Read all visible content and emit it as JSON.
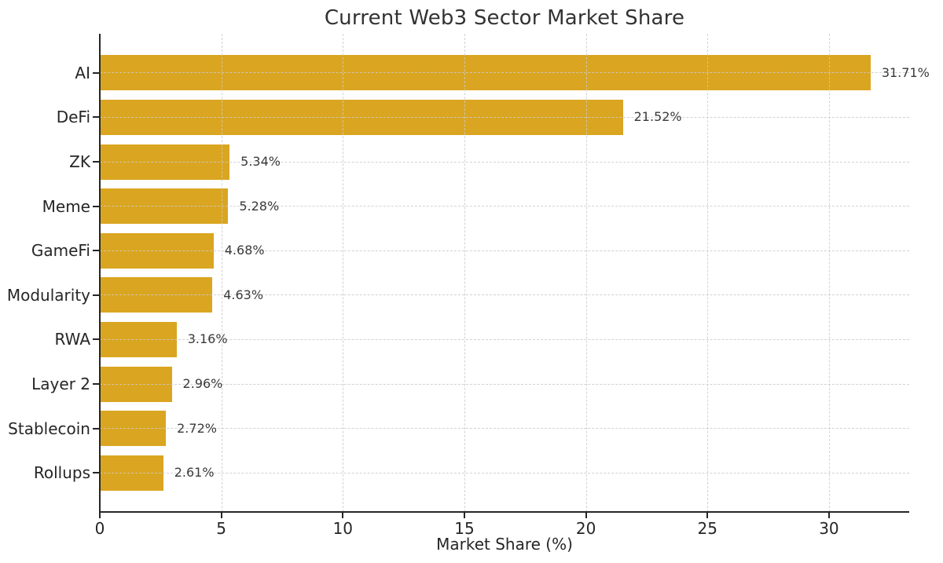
{
  "chart_data": {
    "type": "bar",
    "orientation": "horizontal",
    "title": "Current Web3 Sector Market Share",
    "xlabel": "Market Share (%)",
    "ylabel": "",
    "categories": [
      "AI",
      "DeFi",
      "ZK",
      "Meme",
      "GameFi",
      "Modularity",
      "RWA",
      "Layer 2",
      "Stablecoin",
      "Rollups"
    ],
    "values": [
      31.71,
      21.52,
      5.34,
      5.28,
      4.68,
      4.63,
      3.16,
      2.96,
      2.72,
      2.61
    ],
    "value_labels": [
      "31.71%",
      "21.52%",
      "5.34%",
      "5.28%",
      "4.68%",
      "4.63%",
      "3.16%",
      "2.96%",
      "2.72%",
      "2.61%"
    ],
    "xticks": [
      0,
      5,
      10,
      15,
      20,
      25,
      30
    ],
    "xlim": [
      0,
      33.3
    ],
    "grid": "dashed-both-axes-above-bars",
    "legend": "none",
    "colors": {
      "bar": "#DAA520",
      "title": "#333333",
      "axis_text": "#262626",
      "value_text": "#3A3A3A",
      "spine": "#262626",
      "grid": "#CBCBCB"
    }
  }
}
